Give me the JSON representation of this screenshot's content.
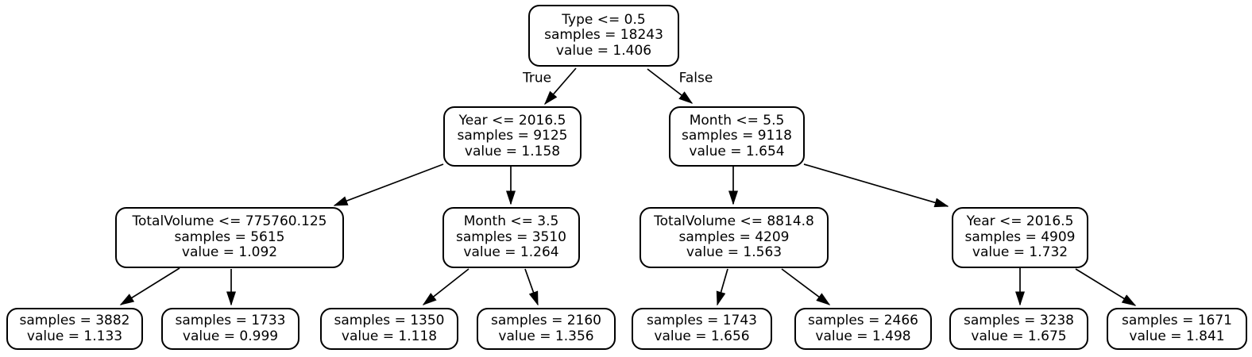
{
  "diagram": {
    "type": "decision-tree",
    "background_color": "#ffffff",
    "node_fill_color": "#ffffff",
    "node_border_color": "#000000",
    "text_color": "#000000",
    "edge_color": "#000000",
    "nodes": [
      {
        "id": "n0",
        "role": "root",
        "lines": [
          "Type <= 0.5",
          "samples = 18243",
          "value = 1.406"
        ]
      },
      {
        "id": "n1",
        "role": "internal",
        "lines": [
          "Year <= 2016.5",
          "samples = 9125",
          "value = 1.158"
        ]
      },
      {
        "id": "n2",
        "role": "internal",
        "lines": [
          "Month <= 5.5",
          "samples = 9118",
          "value = 1.654"
        ]
      },
      {
        "id": "n3",
        "role": "internal",
        "lines": [
          "TotalVolume <= 775760.125",
          "samples = 5615",
          "value = 1.092"
        ]
      },
      {
        "id": "n4",
        "role": "internal",
        "lines": [
          "Month <= 3.5",
          "samples = 3510",
          "value = 1.264"
        ]
      },
      {
        "id": "n5",
        "role": "internal",
        "lines": [
          "TotalVolume <= 8814.8",
          "samples = 4209",
          "value = 1.563"
        ]
      },
      {
        "id": "n6",
        "role": "internal",
        "lines": [
          "Year <= 2016.5",
          "samples = 4909",
          "value = 1.732"
        ]
      },
      {
        "id": "n7",
        "role": "leaf",
        "lines": [
          "samples = 3882",
          "value = 1.133"
        ]
      },
      {
        "id": "n8",
        "role": "leaf",
        "lines": [
          "samples = 1733",
          "value = 0.999"
        ]
      },
      {
        "id": "n9",
        "role": "leaf",
        "lines": [
          "samples = 1350",
          "value = 1.118"
        ]
      },
      {
        "id": "n10",
        "role": "leaf",
        "lines": [
          "samples = 2160",
          "value = 1.356"
        ]
      },
      {
        "id": "n11",
        "role": "leaf",
        "lines": [
          "samples = 1743",
          "value = 1.656"
        ]
      },
      {
        "id": "n12",
        "role": "leaf",
        "lines": [
          "samples = 2466",
          "value = 1.498"
        ]
      },
      {
        "id": "n13",
        "role": "leaf",
        "lines": [
          "samples = 3238",
          "value = 1.675"
        ]
      },
      {
        "id": "n14",
        "role": "leaf",
        "lines": [
          "samples = 1671",
          "value = 1.841"
        ]
      }
    ],
    "edges": [
      {
        "from": "n0",
        "to": "n1",
        "label": "True"
      },
      {
        "from": "n0",
        "to": "n2",
        "label": "False"
      },
      {
        "from": "n1",
        "to": "n3",
        "label": ""
      },
      {
        "from": "n1",
        "to": "n4",
        "label": ""
      },
      {
        "from": "n2",
        "to": "n5",
        "label": ""
      },
      {
        "from": "n2",
        "to": "n6",
        "label": ""
      },
      {
        "from": "n3",
        "to": "n7",
        "label": ""
      },
      {
        "from": "n3",
        "to": "n8",
        "label": ""
      },
      {
        "from": "n4",
        "to": "n9",
        "label": ""
      },
      {
        "from": "n4",
        "to": "n10",
        "label": ""
      },
      {
        "from": "n5",
        "to": "n11",
        "label": ""
      },
      {
        "from": "n5",
        "to": "n12",
        "label": ""
      },
      {
        "from": "n6",
        "to": "n13",
        "label": ""
      },
      {
        "from": "n6",
        "to": "n14",
        "label": ""
      }
    ]
  }
}
